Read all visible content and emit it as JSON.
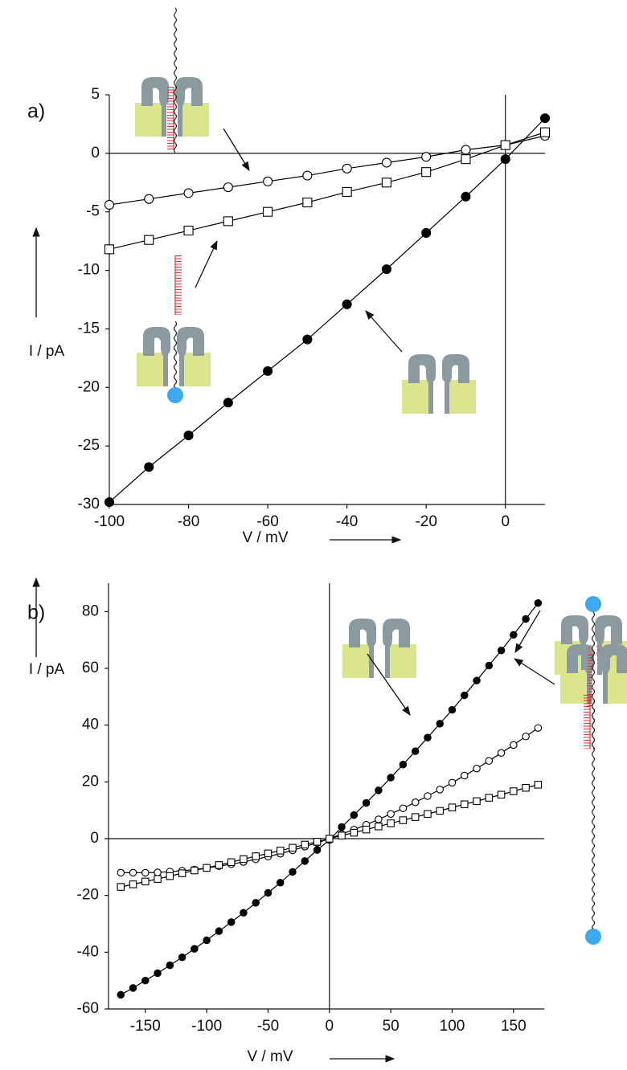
{
  "chart_data": [
    {
      "type": "line",
      "panel_label": "a)",
      "x_label": "V / mV",
      "y_label": "I / pA",
      "x": [
        -100,
        -90,
        -80,
        -70,
        -60,
        -50,
        -40,
        -30,
        -20,
        -10,
        0,
        10
      ],
      "xlim": [
        -100,
        10
      ],
      "ylim": [
        -30,
        5
      ],
      "xticks": [
        -100,
        -80,
        -60,
        -40,
        -20,
        0
      ],
      "yticks": [
        -30,
        -25,
        -20,
        -15,
        -10,
        -5,
        0,
        5
      ],
      "series": [
        {
          "marker": "filled-circle",
          "color": "#000000",
          "values": [
            -29.8,
            -26.8,
            -24.1,
            -21.3,
            -18.6,
            -15.9,
            -12.9,
            -9.9,
            -6.8,
            -3.7,
            -0.5,
            3.0
          ]
        },
        {
          "marker": "open-circle",
          "color": "#000000",
          "values": [
            -4.4,
            -3.9,
            -3.4,
            -2.9,
            -2.4,
            -1.9,
            -1.3,
            -0.8,
            -0.3,
            0.3,
            0.7,
            1.5
          ]
        },
        {
          "marker": "open-square",
          "color": "#000000",
          "values": [
            -8.2,
            -7.4,
            -6.6,
            -5.8,
            -5.0,
            -4.2,
            -3.3,
            -2.5,
            -1.6,
            -0.5,
            0.7,
            1.8
          ]
        }
      ]
    },
    {
      "type": "line",
      "panel_label": "b)",
      "x_label": "V / mV",
      "y_label": "I / pA",
      "x": [
        -170,
        -160,
        -150,
        -140,
        -130,
        -120,
        -110,
        -100,
        -90,
        -80,
        -70,
        -60,
        -50,
        -40,
        -30,
        -20,
        -10,
        0,
        10,
        20,
        30,
        40,
        50,
        60,
        70,
        80,
        90,
        100,
        110,
        120,
        130,
        140,
        150,
        160,
        170
      ],
      "xlim": [
        -180,
        175
      ],
      "ylim": [
        -60,
        90
      ],
      "xticks": [
        -150,
        -100,
        -50,
        0,
        50,
        100,
        150
      ],
      "yticks": [
        -60,
        -40,
        -20,
        0,
        20,
        40,
        60,
        80
      ],
      "series": [
        {
          "marker": "filled-circle",
          "color": "#000000",
          "values": [
            -55.0,
            -52.6,
            -50.0,
            -47.4,
            -44.6,
            -41.8,
            -38.8,
            -35.8,
            -32.6,
            -29.4,
            -26.1,
            -22.6,
            -19.1,
            -15.5,
            -11.7,
            -7.9,
            -4.0,
            -0.5,
            4.1,
            8.3,
            12.6,
            17.0,
            21.5,
            26.1,
            30.8,
            35.6,
            40.5,
            45.4,
            50.5,
            55.7,
            61.0,
            66.3,
            71.8,
            77.4,
            83.0
          ]
        },
        {
          "marker": "open-circle",
          "color": "#000000",
          "values": [
            -12.0,
            -12.0,
            -12.0,
            -11.9,
            -11.6,
            -11.3,
            -10.9,
            -10.3,
            -9.7,
            -9.0,
            -8.2,
            -7.3,
            -6.3,
            -5.3,
            -4.1,
            -2.8,
            -1.5,
            0,
            1.6,
            3.2,
            4.9,
            6.8,
            8.7,
            10.7,
            12.8,
            15.0,
            17.3,
            19.7,
            22.2,
            24.7,
            27.4,
            30.2,
            33.0,
            36.0,
            39.0
          ]
        },
        {
          "marker": "open-square",
          "color": "#000000",
          "values": [
            -17.0,
            -16.1,
            -15.1,
            -14.2,
            -13.2,
            -12.2,
            -11.2,
            -10.3,
            -9.3,
            -8.3,
            -7.2,
            -6.2,
            -5.2,
            -4.2,
            -3.2,
            -2.1,
            -1.1,
            0,
            1.1,
            2.1,
            3.2,
            4.3,
            5.4,
            6.5,
            7.6,
            8.7,
            9.8,
            11.0,
            12.1,
            13.2,
            14.4,
            15.5,
            16.7,
            17.9,
            19.0
          ]
        }
      ]
    }
  ]
}
